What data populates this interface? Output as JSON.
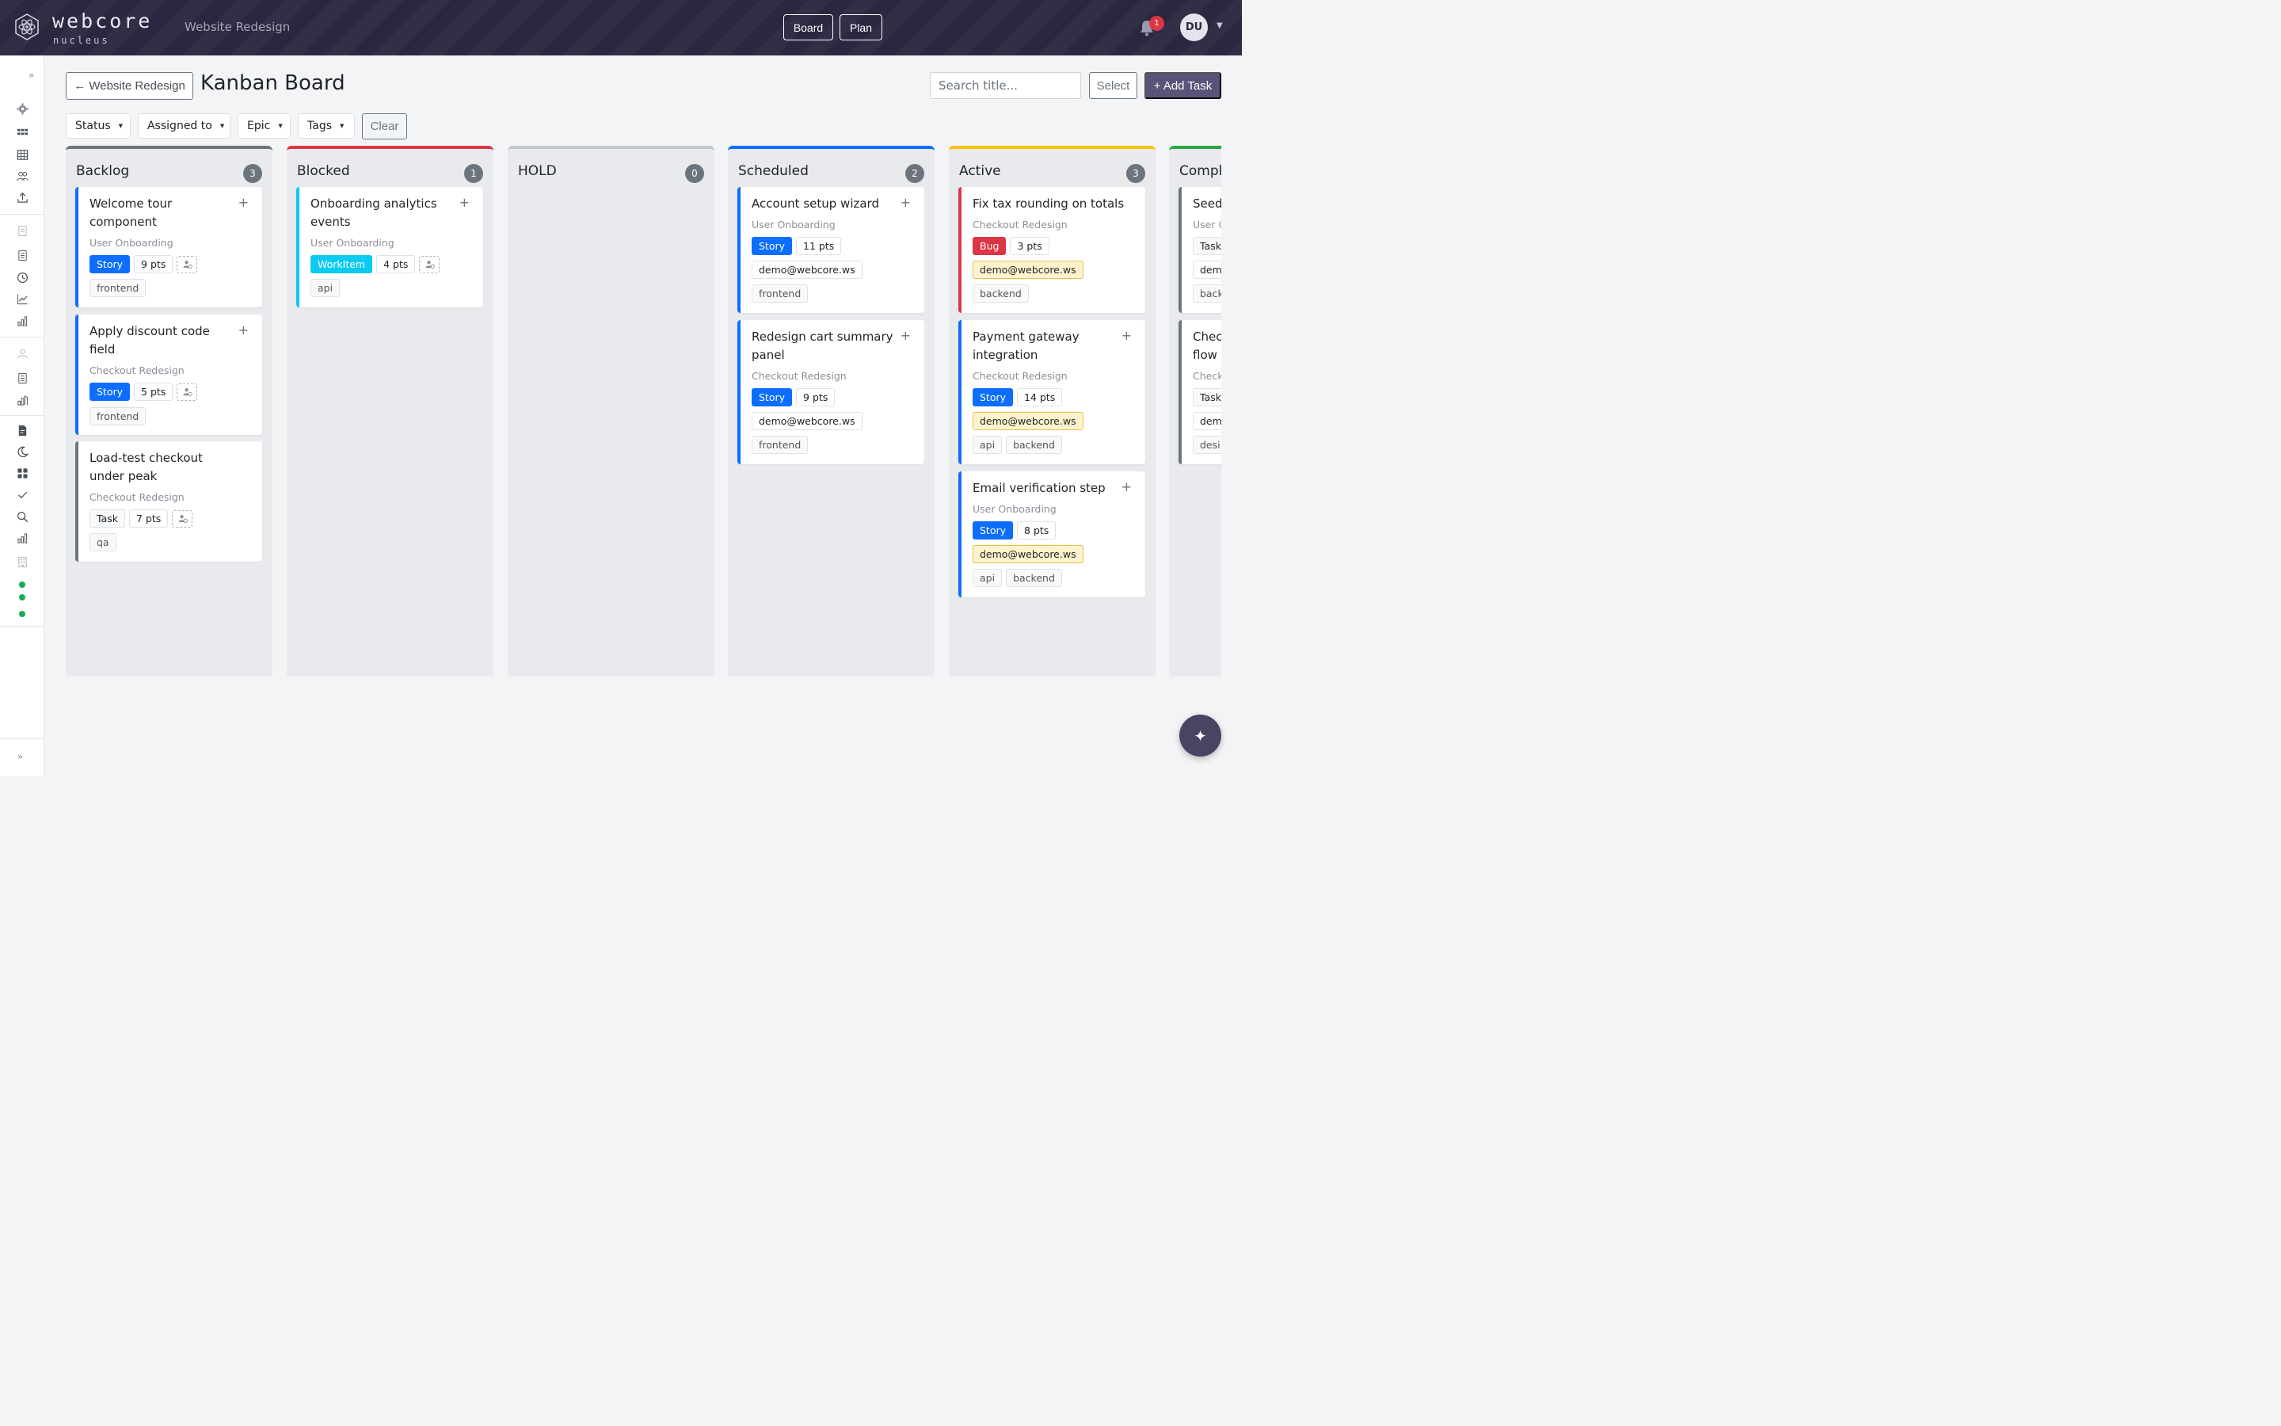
{
  "brand": {
    "name": "webcore",
    "sub": "nucleus"
  },
  "header": {
    "project": "Website Redesign",
    "nav": [
      "Board",
      "Plan"
    ],
    "notifications": "1",
    "avatar_initials": "DU"
  },
  "toolbar": {
    "back_label": "← Website Redesign",
    "title": "Kanban Board",
    "search_placeholder": "Search title...",
    "select_label": "Select",
    "add_label": "+ Add Task",
    "filters": [
      "Status",
      "Assigned to",
      "Epic",
      "Tags"
    ],
    "clear_label": "Clear"
  },
  "colors": {
    "backlog": "#6c757d",
    "blocked": "#dc3545",
    "hold": "#adb5bd",
    "scheduled": "#0d6efd",
    "active": "#ffc107",
    "completed": "#28a745"
  },
  "columns": [
    {
      "title": "Backlog",
      "count": "3",
      "cards": [
        {
          "title": "Welcome tour component",
          "epic": "User Onboarding",
          "type": "Story",
          "points": "9 pts",
          "tags": [
            "frontend"
          ]
        },
        {
          "title": "Apply discount code field",
          "epic": "Checkout Redesign",
          "type": "Story",
          "points": "5 pts",
          "tags": [
            "frontend"
          ]
        },
        {
          "title": "Load-test checkout under peak",
          "epic": "Checkout Redesign",
          "type": "Task",
          "points": "7 pts",
          "tags": [
            "qa"
          ]
        }
      ]
    },
    {
      "title": "Blocked",
      "count": "1",
      "cards": [
        {
          "title": "Onboarding analytics events",
          "epic": "User Onboarding",
          "type": "WorkItem",
          "points": "4 pts",
          "tags": [
            "api"
          ]
        }
      ]
    },
    {
      "title": "HOLD",
      "count": "0",
      "cards": []
    },
    {
      "title": "Scheduled",
      "count": "2",
      "cards": [
        {
          "title": "Account setup wizard",
          "epic": "User Onboarding",
          "type": "Story",
          "points": "11 pts",
          "assignee": "demo@webcore.ws",
          "tags": [
            "frontend"
          ]
        },
        {
          "title": "Redesign cart summary panel",
          "epic": "Checkout Redesign",
          "type": "Story",
          "points": "9 pts",
          "assignee": "demo@webcore.ws",
          "tags": [
            "frontend"
          ]
        }
      ]
    },
    {
      "title": "Active",
      "count": "3",
      "cards": [
        {
          "title": "Fix tax rounding on totals",
          "epic": "Checkout Redesign",
          "type": "Bug",
          "points": "3 pts",
          "assignee": "demo@webcore.ws",
          "tags": [
            "backend"
          ]
        },
        {
          "title": "Payment gateway integration",
          "epic": "Checkout Redesign",
          "type": "Story",
          "points": "14 pts",
          "assignee": "demo@webcore.ws",
          "tags": [
            "api",
            "backend"
          ]
        },
        {
          "title": "Email verification step",
          "epic": "User Onboarding",
          "type": "Story",
          "points": "8 pts",
          "assignee": "demo@webcore.ws",
          "tags": [
            "api",
            "backend"
          ]
        }
      ]
    },
    {
      "title": "Compl",
      "count": "",
      "cards": [
        {
          "title": "Seed",
          "epic": "User C",
          "type": "Task",
          "points": "",
          "assignee": "dem",
          "tags": [
            "back"
          ]
        },
        {
          "title": "Chec flow",
          "epic": "Check",
          "type": "Task",
          "points": "",
          "assignee": "dem",
          "tags": [
            "desi"
          ]
        }
      ]
    }
  ]
}
